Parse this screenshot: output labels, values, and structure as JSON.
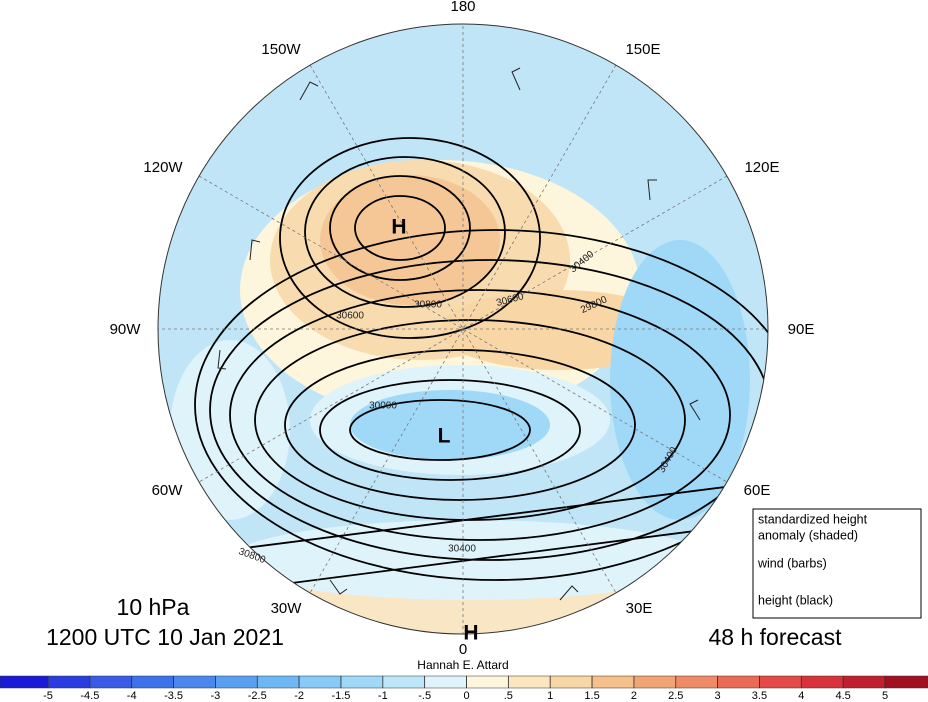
{
  "longitude_labels": [
    "180",
    "150E",
    "120E",
    "90E",
    "60E",
    "30E",
    "0",
    "30W",
    "60W",
    "90W",
    "120W",
    "150W"
  ],
  "pressure_centers": [
    "H",
    "L",
    "H"
  ],
  "contour_labels": [
    "30600",
    "30800",
    "30600",
    "29800",
    "30400",
    "30000",
    "30400",
    "30800",
    "30400"
  ],
  "legend": [
    "standardized height",
    "anomaly (shaded)",
    "wind (barbs)",
    "height (black)"
  ],
  "level": "10 hPa",
  "valid_time": "1200 UTC 10 Jan 2021",
  "forecast": "48 h forecast",
  "author": "Hannah E. Attard",
  "colorbar": {
    "lim": [
      -5,
      5
    ],
    "ticks": [
      -5,
      -4.5,
      -4,
      -3.5,
      -3,
      -2.5,
      -2,
      -1.5,
      -1,
      {
        "value": -0.5,
        "label": "-.5"
      },
      0,
      {
        "value": 0.5,
        "label": ".5"
      },
      1,
      1.5,
      2,
      2.5,
      3,
      3.5,
      4,
      4.5,
      5
    ],
    "colors": [
      "#1a1ad6",
      "#2b3de0",
      "#3a5be6",
      "#3c72ea",
      "#4a88ee",
      "#5aa0f2",
      "#6db7f5",
      "#86caf7",
      "#a0d9f8",
      "#bde6f9",
      "#dff3fb",
      "#fdf5dc",
      "#fbe6bf",
      "#f8d6a5",
      "#f5c08a",
      "#f2a574",
      "#ef8a66",
      "#ea6a56",
      "#e44b48",
      "#d8333c",
      "#c01f2e",
      "#a01020"
    ]
  }
}
